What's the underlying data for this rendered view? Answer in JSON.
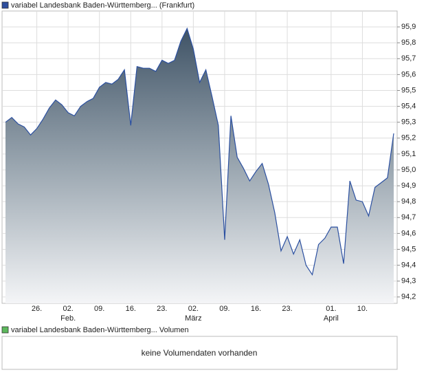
{
  "chart_data": {
    "type": "area",
    "title": "variabel Landesbank Baden-Württemberg... (Frankfurt)",
    "color": "#2a4fa0",
    "legend_color": "#2e4e9e",
    "categories": [
      null,
      null,
      null,
      null,
      null,
      "26.",
      null,
      null,
      null,
      null,
      "02.",
      null,
      null,
      null,
      null,
      "09.",
      null,
      null,
      null,
      null,
      "16.",
      null,
      null,
      null,
      null,
      "23.",
      null,
      null,
      null,
      null,
      "02.",
      null,
      null,
      null,
      null,
      "09.",
      null,
      null,
      null,
      null,
      "16.",
      null,
      null,
      null,
      null,
      "23.",
      null,
      null,
      null,
      null,
      null,
      null,
      "01.",
      null,
      null,
      null,
      null,
      "10.",
      null,
      null,
      null,
      null,
      null
    ],
    "category_groups": [
      null,
      null,
      null,
      null,
      null,
      null,
      null,
      null,
      null,
      null,
      "Feb.",
      null,
      null,
      null,
      null,
      null,
      null,
      null,
      null,
      null,
      null,
      null,
      null,
      null,
      null,
      null,
      null,
      null,
      null,
      null,
      "März",
      null,
      null,
      null,
      null,
      null,
      null,
      null,
      null,
      null,
      null,
      null,
      null,
      null,
      null,
      null,
      null,
      null,
      null,
      null,
      null,
      null,
      "April",
      null,
      null,
      null,
      null,
      null,
      null,
      null,
      null,
      null,
      null
    ],
    "values": [
      95.3,
      95.33,
      95.29,
      95.27,
      95.22,
      95.26,
      95.32,
      95.39,
      95.44,
      95.41,
      95.36,
      95.34,
      95.4,
      95.43,
      95.45,
      95.52,
      95.55,
      95.54,
      95.57,
      95.63,
      95.28,
      95.65,
      95.64,
      95.64,
      95.62,
      95.69,
      95.67,
      95.69,
      95.81,
      95.89,
      95.76,
      95.55,
      95.63,
      95.46,
      95.28,
      94.56,
      95.34,
      95.08,
      95.01,
      94.93,
      94.99,
      95.04,
      94.91,
      94.73,
      94.49,
      94.58,
      94.47,
      94.56,
      94.4,
      94.34,
      94.53,
      94.57,
      94.64,
      94.64,
      94.41,
      94.93,
      94.81,
      94.8,
      94.71,
      94.89,
      94.92,
      94.95,
      95.23
    ],
    "ylim": [
      94.16,
      96.0
    ],
    "yticks": [
      {
        "value": 94.2,
        "label": "94,2"
      },
      {
        "value": 94.3,
        "label": "94,3"
      },
      {
        "value": 94.4,
        "label": "94,4"
      },
      {
        "value": 94.5,
        "label": "94,5"
      },
      {
        "value": 94.6,
        "label": "94,6"
      },
      {
        "value": 94.7,
        "label": "94,7"
      },
      {
        "value": 94.8,
        "label": "94,8"
      },
      {
        "value": 94.9,
        "label": "94,9"
      },
      {
        "value": 95.0,
        "label": "95,0"
      },
      {
        "value": 95.1,
        "label": "95,1"
      },
      {
        "value": 95.2,
        "label": "95,2"
      },
      {
        "value": 95.3,
        "label": "95,3"
      },
      {
        "value": 95.4,
        "label": "95,4"
      },
      {
        "value": 95.5,
        "label": "95,5"
      },
      {
        "value": 95.6,
        "label": "95,6"
      },
      {
        "value": 95.7,
        "label": "95,7"
      },
      {
        "value": 95.8,
        "label": "95,8"
      },
      {
        "value": 95.9,
        "label": "95,9"
      }
    ],
    "grid": true,
    "volume": {
      "title": "variabel Landesbank Baden-Württemberg... Volumen",
      "legend_color": "#5cb85c",
      "message": "keine Volumendaten vorhanden"
    }
  }
}
